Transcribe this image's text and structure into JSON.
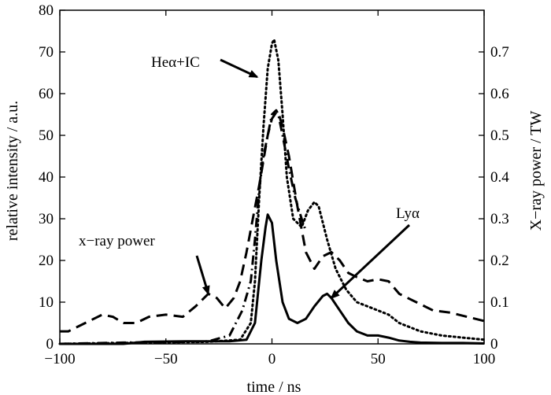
{
  "chart_data": {
    "type": "line",
    "title": "",
    "xlabel": "time / ns",
    "ylabel": "relative intensity / a.u.",
    "y2label": "X−ray power / TW",
    "xlim": [
      -100,
      100
    ],
    "ylim": [
      0,
      80
    ],
    "y2lim": [
      0,
      0.8
    ],
    "grid": false,
    "legend": "none",
    "xticks": [
      -100,
      -50,
      0,
      50,
      100
    ],
    "xtick_labels": [
      "−100",
      "−50",
      "0",
      "50",
      "100"
    ],
    "yticks": [
      0,
      10,
      20,
      30,
      40,
      50,
      60,
      70,
      80
    ],
    "ytick_labels": [
      "0",
      "10",
      "20",
      "30",
      "40",
      "50",
      "60",
      "70",
      "80"
    ],
    "y2ticks": [
      0,
      0.1,
      0.2,
      0.3,
      0.4,
      0.5,
      0.6,
      0.7
    ],
    "y2tick_labels": [
      "0",
      "0.1",
      "0.2",
      "0.3",
      "0.4",
      "0.5",
      "0.6",
      "0.7"
    ],
    "series": [
      {
        "style": "solid",
        "x": [
          -100,
          -70,
          -60,
          -40,
          -20,
          -12,
          -8,
          -5,
          -3,
          -2,
          0,
          2,
          5,
          8,
          12,
          16,
          20,
          24,
          26,
          28,
          32,
          36,
          40,
          45,
          50,
          55,
          60,
          65,
          70,
          80,
          90,
          100
        ],
        "y": [
          0,
          0,
          0.5,
          0.6,
          0.6,
          1,
          5,
          20,
          28,
          31,
          29,
          20,
          10,
          6,
          5,
          6,
          9,
          11.5,
          12,
          11,
          8,
          5,
          3,
          2,
          2,
          1.5,
          0.8,
          0.5,
          0.3,
          0.2,
          0.2,
          0.1
        ]
      },
      {
        "style": "dotted",
        "x": [
          -100,
          -60,
          -30,
          -15,
          -10,
          -8,
          -6,
          -4,
          -2,
          0,
          1,
          3,
          5,
          7,
          10,
          14,
          17,
          20,
          22,
          24,
          26,
          30,
          35,
          40,
          45,
          50,
          55,
          60,
          70,
          80,
          90,
          100
        ],
        "y": [
          0,
          0.3,
          0.5,
          1,
          5,
          15,
          35,
          52,
          66,
          72,
          73,
          68,
          55,
          40,
          30,
          28,
          32,
          34,
          33,
          29,
          25,
          18,
          13,
          10,
          9,
          8,
          7,
          5,
          3,
          2,
          1.5,
          1
        ],
        "annotation": "Heα+IC"
      },
      {
        "style": "dashdot",
        "x": [
          -100,
          -70,
          -50,
          -30,
          -20,
          -14,
          -10,
          -8,
          -6,
          -4,
          -2,
          0,
          2,
          3,
          5,
          8,
          11,
          14,
          16
        ],
        "y": [
          0,
          0.3,
          0.4,
          0.6,
          2,
          8,
          15,
          25,
          37,
          45,
          50,
          55,
          56,
          55,
          50,
          42,
          35,
          30,
          27
        ]
      },
      {
        "style": "dashed",
        "axis": "right",
        "x": [
          -100,
          -96,
          -88,
          -80,
          -75,
          -70,
          -64,
          -58,
          -50,
          -42,
          -36,
          -30,
          -26,
          -22,
          -18,
          -15,
          -12,
          -9,
          -6,
          -4,
          -2,
          0,
          2,
          3,
          5,
          8,
          12,
          16,
          20,
          24,
          28,
          32,
          36,
          40,
          45,
          50,
          55,
          60,
          68,
          76,
          84,
          92,
          100
        ],
        "y": [
          0.03,
          0.03,
          0.05,
          0.07,
          0.065,
          0.05,
          0.05,
          0.065,
          0.07,
          0.065,
          0.09,
          0.12,
          0.11,
          0.085,
          0.11,
          0.15,
          0.22,
          0.3,
          0.38,
          0.44,
          0.5,
          0.54,
          0.555,
          0.555,
          0.52,
          0.45,
          0.33,
          0.22,
          0.18,
          0.21,
          0.22,
          0.2,
          0.17,
          0.16,
          0.15,
          0.155,
          0.15,
          0.12,
          0.1,
          0.08,
          0.075,
          0.065,
          0.055
        ],
        "annotation": "x−ray power"
      }
    ],
    "annotations": [
      {
        "text": "Heα+IC",
        "target_x": -7,
        "target_y": 64
      },
      {
        "text": "x−ray power",
        "target_x": -30,
        "target_y": 12
      },
      {
        "text": "Lyα",
        "target_x": 28,
        "target_y": 11
      }
    ]
  }
}
